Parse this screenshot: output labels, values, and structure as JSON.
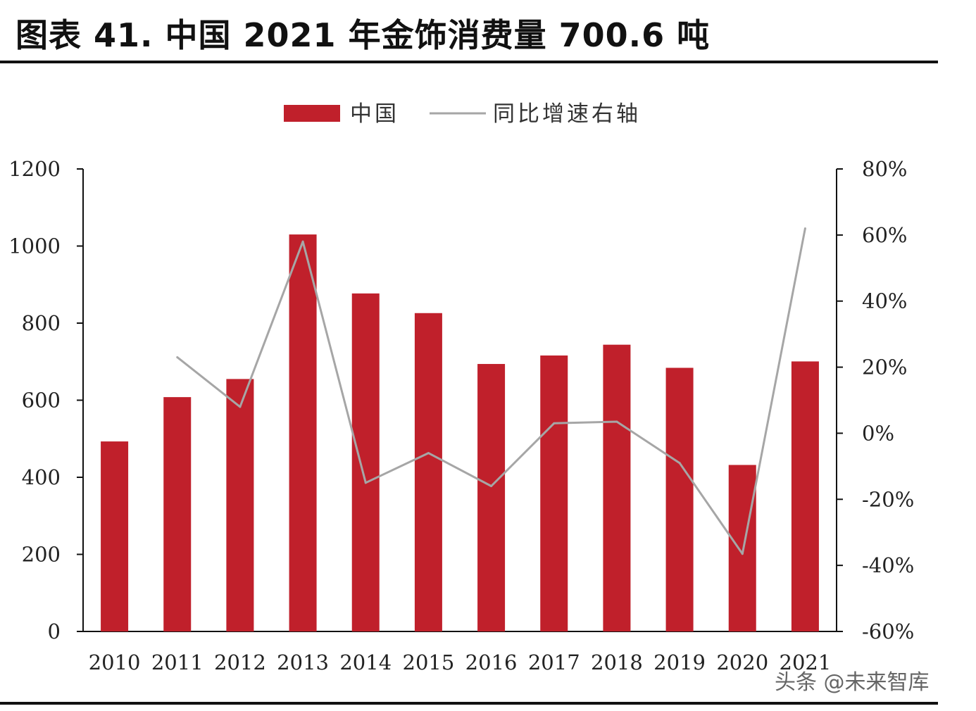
{
  "title": "图表 41. 中国 2021 年金饰消费量 700.6 吨",
  "watermark": "头条 @未来智库",
  "colors": {
    "bar": "#c0202b",
    "line": "#a6a6a6",
    "axis": "#111111"
  },
  "chart_data": {
    "type": "bar",
    "categories": [
      "2010",
      "2011",
      "2012",
      "2013",
      "2014",
      "2015",
      "2016",
      "2017",
      "2018",
      "2019",
      "2020",
      "2021"
    ],
    "series": [
      {
        "name": "中国",
        "type": "bar",
        "axis": "left",
        "values": [
          493,
          608,
          655,
          1030,
          877,
          826,
          694,
          716,
          744,
          684,
          432,
          700.6
        ]
      },
      {
        "name": "同比增速右轴",
        "type": "line",
        "axis": "right",
        "values": [
          null,
          0.23,
          0.08,
          0.58,
          -0.15,
          -0.06,
          -0.16,
          0.03,
          0.035,
          -0.09,
          -0.365,
          0.62
        ]
      }
    ],
    "y_left": {
      "min": 0,
      "max": 1200,
      "ticks": [
        0,
        200,
        400,
        600,
        800,
        1000,
        1200
      ]
    },
    "y_right": {
      "min": -0.6,
      "max": 0.8,
      "ticks": [
        -0.6,
        -0.4,
        -0.2,
        0,
        0.2,
        0.4,
        0.6,
        0.8
      ],
      "tick_labels": [
        "-60%",
        "-40%",
        "-20%",
        "0%",
        "20%",
        "40%",
        "60%",
        "80%"
      ]
    },
    "legend_position": "top-center",
    "grid": false
  }
}
